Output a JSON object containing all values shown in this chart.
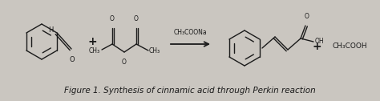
{
  "background_color": "#cac6c0",
  "title_text": "Figure 1. Synthesis of cinnamic acid through Perkin reaction",
  "title_fontsize": 7.5,
  "reagent_label": "CH₃COONa",
  "product_label": "CH₃COOH",
  "fig_width": 4.74,
  "fig_height": 1.26,
  "line_color": "#1a1a1a",
  "line_width": 1.0
}
